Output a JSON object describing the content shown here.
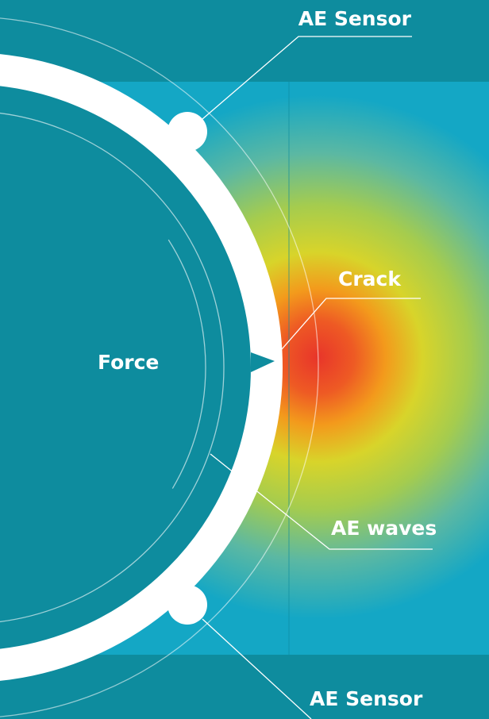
{
  "labels": {
    "sensor_top": "AE Sensor",
    "crack": "Crack",
    "force": "Force",
    "ae_waves": "AE waves",
    "sensor_bottom": "AE Sensor"
  },
  "colors": {
    "background": "#0e8c9e",
    "panel": "#14a7c5",
    "heat_hot": "#e8352a",
    "heat_warm": "#f39a1c",
    "heat_mid": "#d8d42a",
    "heat_cool": "#7dbf6e",
    "ring": "#ffffff",
    "text": "#ffffff"
  }
}
